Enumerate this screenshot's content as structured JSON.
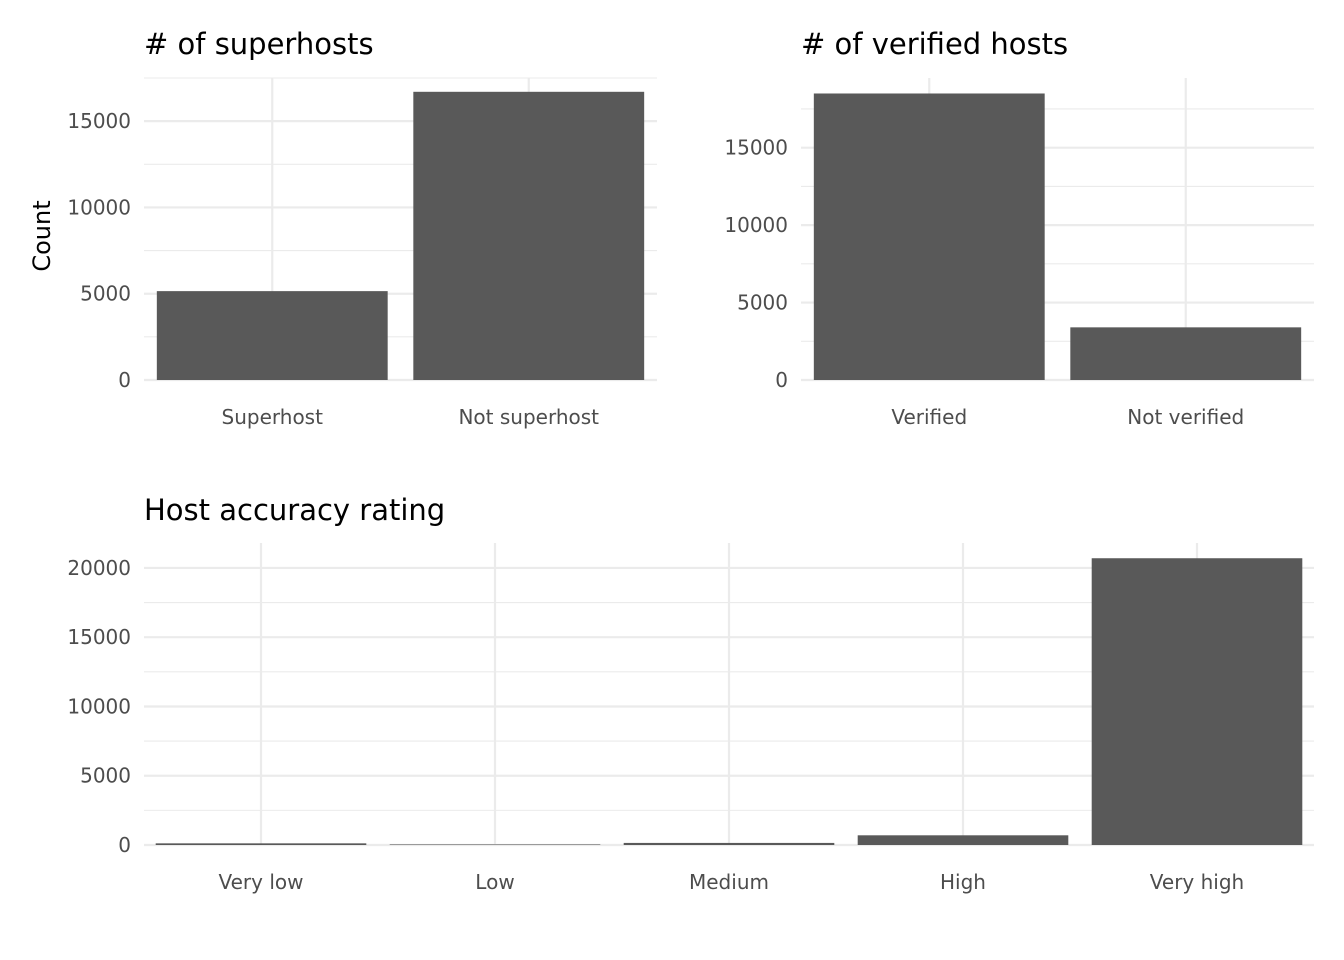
{
  "chart_data": [
    {
      "type": "bar",
      "title": "# of superhosts",
      "ylabel": "Count",
      "xlabel": "",
      "categories": [
        "Superhost",
        "Not superhost"
      ],
      "values": [
        5150,
        16700
      ],
      "ylim": [
        0,
        17500
      ],
      "yticks": [
        0,
        5000,
        10000,
        15000
      ],
      "grid": true,
      "bar_color": "#595959"
    },
    {
      "type": "bar",
      "title": "# of verified hosts",
      "ylabel": "",
      "xlabel": "",
      "categories": [
        "Verified",
        "Not verified"
      ],
      "values": [
        18500,
        3400
      ],
      "ylim": [
        0,
        19500
      ],
      "yticks": [
        0,
        5000,
        10000,
        15000
      ],
      "grid": true,
      "bar_color": "#595959"
    },
    {
      "type": "bar",
      "title": "Host accuracy rating",
      "ylabel": "",
      "xlabel": "",
      "categories": [
        "Very low",
        "Low",
        "Medium",
        "High",
        "Very high"
      ],
      "values": [
        120,
        40,
        150,
        700,
        20700
      ],
      "ylim": [
        0,
        21800
      ],
      "yticks": [
        0,
        5000,
        10000,
        15000,
        20000
      ],
      "grid": true,
      "bar_color": "#595959"
    }
  ]
}
